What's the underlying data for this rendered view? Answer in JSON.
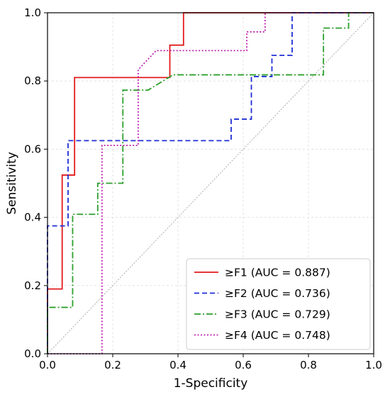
{
  "chart_data": {
    "type": "line",
    "title": "",
    "xlabel": "1-Specificity",
    "ylabel": "Sensitivity",
    "xlim": [
      0,
      1
    ],
    "ylim": [
      0,
      1
    ],
    "xticks": [
      "0.0",
      "0.2",
      "0.4",
      "0.6",
      "0.8",
      "1.0"
    ],
    "yticks": [
      "0.0",
      "0.2",
      "0.4",
      "0.6",
      "0.8",
      "1.0"
    ],
    "grid": true,
    "legend_position": "bottom-right",
    "diagonal_reference": true,
    "series": [
      {
        "name": "≥F1 (AUC = 0.887)",
        "color": "#e31a1c",
        "dash": "solid",
        "points": [
          [
            0,
            0
          ],
          [
            0,
            0.19
          ],
          [
            0.045,
            0.19
          ],
          [
            0.045,
            0.524
          ],
          [
            0.083,
            0.524
          ],
          [
            0.083,
            0.81
          ],
          [
            0.375,
            0.81
          ],
          [
            0.375,
            0.905
          ],
          [
            0.417,
            0.905
          ],
          [
            0.417,
            1.0
          ],
          [
            1.0,
            1.0
          ]
        ]
      },
      {
        "name": "≥F2 (AUC = 0.736)",
        "color": "#1f2fd6",
        "dash": "dashed",
        "points": [
          [
            0,
            0
          ],
          [
            0,
            0.375
          ],
          [
            0.063,
            0.375
          ],
          [
            0.063,
            0.625
          ],
          [
            0.563,
            0.625
          ],
          [
            0.563,
            0.688
          ],
          [
            0.625,
            0.688
          ],
          [
            0.625,
            0.813
          ],
          [
            0.688,
            0.813
          ],
          [
            0.688,
            0.875
          ],
          [
            0.75,
            0.875
          ],
          [
            0.75,
            1.0
          ],
          [
            1.0,
            1.0
          ]
        ]
      },
      {
        "name": "≥F3 (AUC = 0.729)",
        "color": "#2ca02c",
        "dash": "dashdot",
        "points": [
          [
            0,
            0
          ],
          [
            0,
            0.136
          ],
          [
            0.077,
            0.136
          ],
          [
            0.077,
            0.409
          ],
          [
            0.154,
            0.409
          ],
          [
            0.154,
            0.5
          ],
          [
            0.231,
            0.5
          ],
          [
            0.231,
            0.773
          ],
          [
            0.308,
            0.773
          ],
          [
            0.385,
            0.818
          ],
          [
            0.846,
            0.818
          ],
          [
            0.846,
            0.955
          ],
          [
            0.923,
            0.955
          ],
          [
            0.923,
            1.0
          ],
          [
            1.0,
            1.0
          ]
        ]
      },
      {
        "name": "≥F4 (AUC = 0.748)",
        "color": "#c020b0",
        "dash": "dotted",
        "points": [
          [
            0,
            0
          ],
          [
            0.167,
            0
          ],
          [
            0.167,
            0.611
          ],
          [
            0.278,
            0.611
          ],
          [
            0.278,
            0.833
          ],
          [
            0.333,
            0.889
          ],
          [
            0.611,
            0.889
          ],
          [
            0.611,
            0.944
          ],
          [
            0.667,
            0.944
          ],
          [
            0.667,
            1.0
          ],
          [
            1.0,
            1.0
          ]
        ]
      }
    ]
  }
}
